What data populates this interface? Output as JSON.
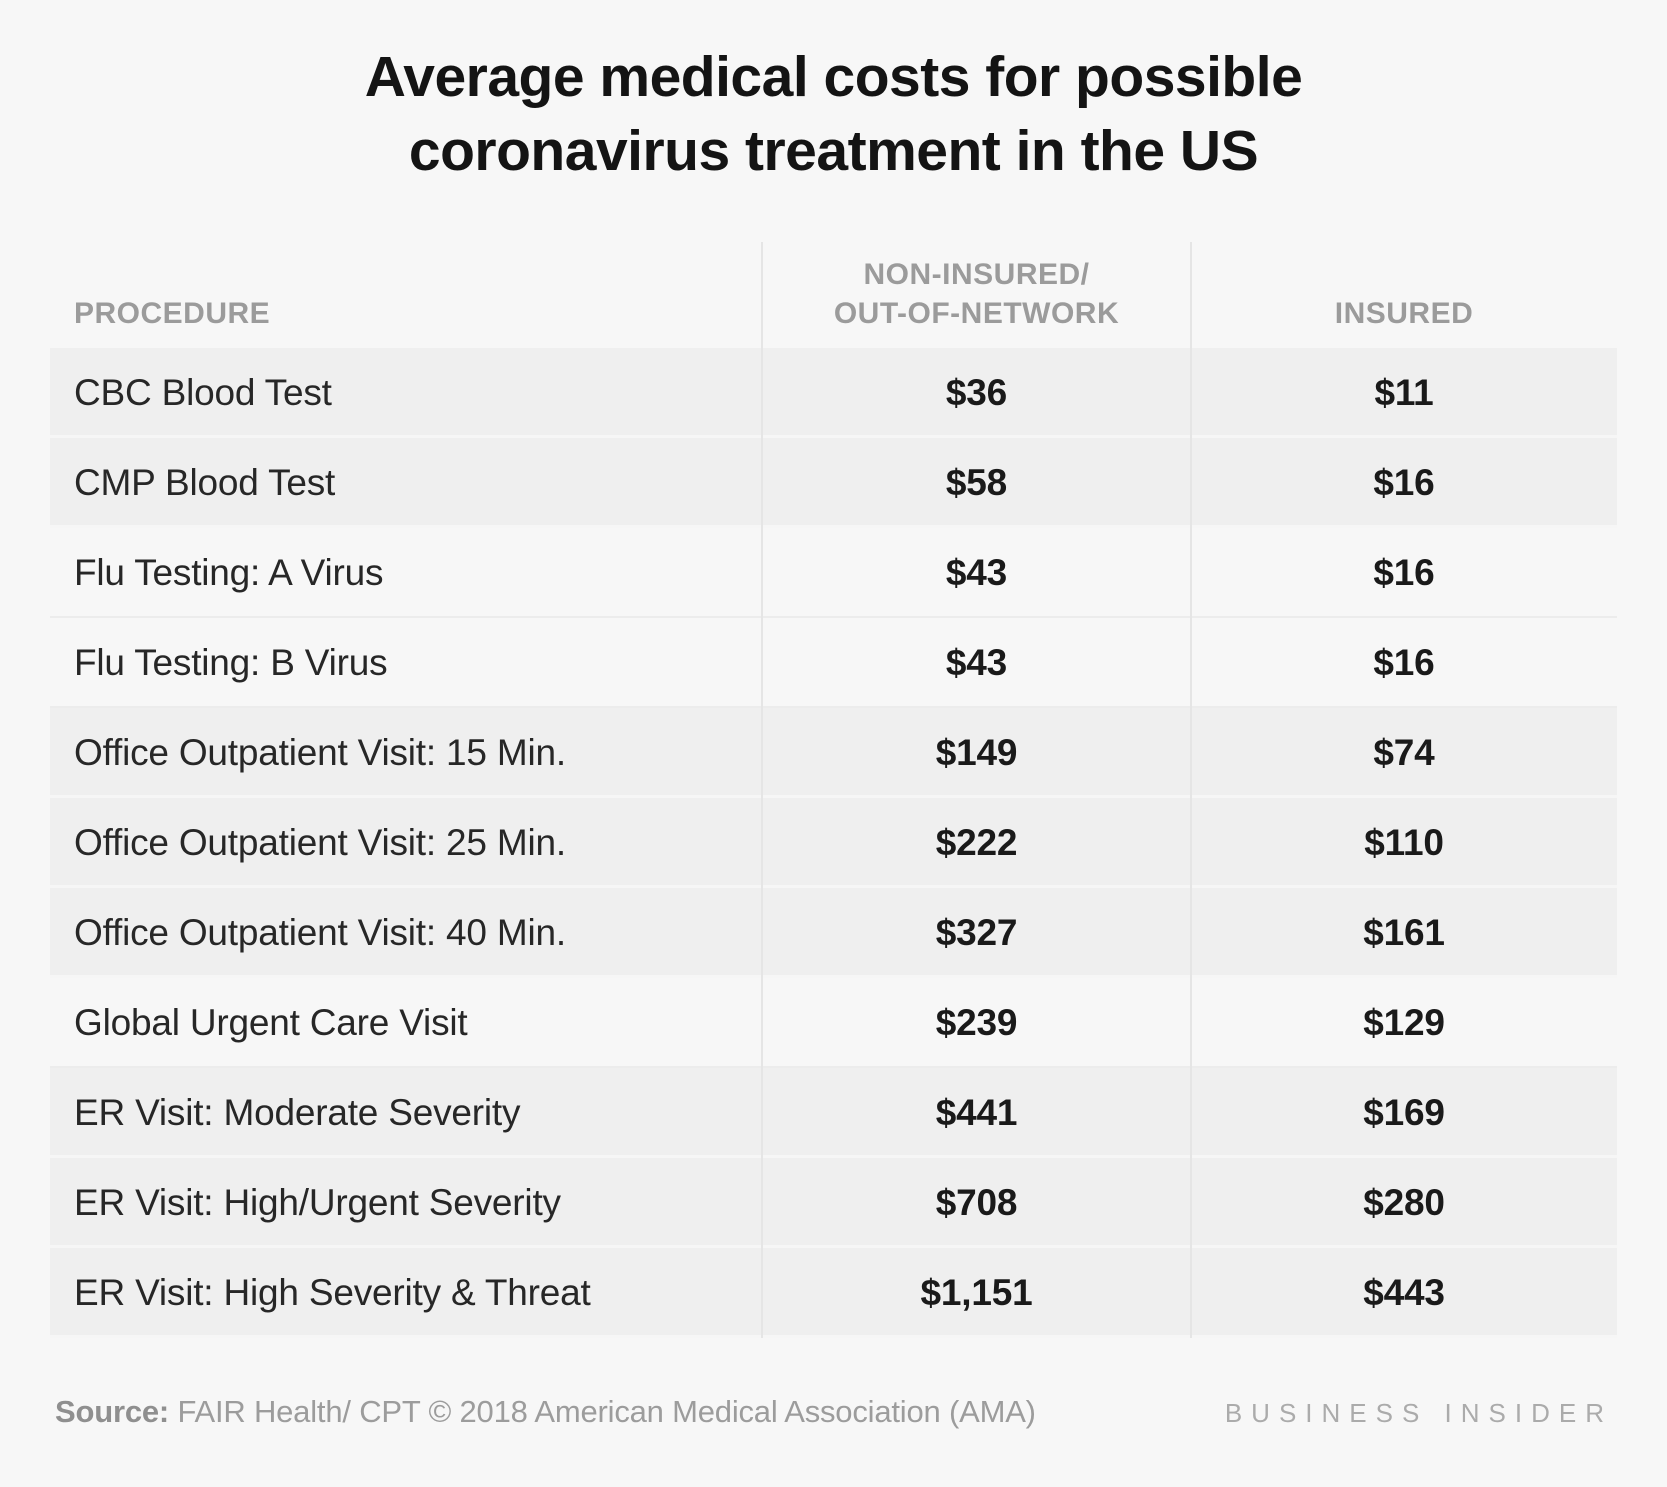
{
  "chart_data": {
    "type": "table",
    "title": "Average medical costs for possible coronavirus treatment in the US",
    "title_line1": "Average medical costs for possible",
    "title_line2": "coronavirus treatment in the US",
    "columns": [
      {
        "label": "PROCEDURE",
        "align": "left"
      },
      {
        "label": "NON-INSURED/OUT-OF-NETWORK",
        "label_line1": "NON-INSURED/",
        "label_line2": "OUT-OF-NETWORK",
        "align": "center"
      },
      {
        "label": "INSURED",
        "align": "center"
      }
    ],
    "rows": [
      {
        "procedure": "CBC Blood Test",
        "non_insured": "$36",
        "insured": "$11",
        "shaded": true
      },
      {
        "procedure": "CMP Blood Test",
        "non_insured": "$58",
        "insured": "$16",
        "shaded": true
      },
      {
        "procedure": "Flu Testing: A Virus",
        "non_insured": "$43",
        "insured": "$16",
        "shaded": false
      },
      {
        "procedure": "Flu Testing: B Virus",
        "non_insured": "$43",
        "insured": "$16",
        "shaded": false
      },
      {
        "procedure": "Office Outpatient Visit: 15 Min.",
        "non_insured": "$149",
        "insured": "$74",
        "shaded": true
      },
      {
        "procedure": "Office Outpatient Visit: 25 Min.",
        "non_insured": "$222",
        "insured": "$110",
        "shaded": true
      },
      {
        "procedure": "Office Outpatient Visit: 40 Min.",
        "non_insured": "$327",
        "insured": "$161",
        "shaded": true
      },
      {
        "procedure": "Global Urgent Care Visit",
        "non_insured": "$239",
        "insured": "$129",
        "shaded": false
      },
      {
        "procedure": "ER Visit: Moderate Severity",
        "non_insured": "$441",
        "insured": "$169",
        "shaded": true
      },
      {
        "procedure": "ER Visit: High/Urgent Severity",
        "non_insured": "$708",
        "insured": "$280",
        "shaded": true
      },
      {
        "procedure": "ER Visit: High Severity & Threat",
        "non_insured": "$1,151",
        "insured": "$443",
        "shaded": true
      }
    ],
    "layout": {
      "grid": "off",
      "legend": "none"
    }
  },
  "footer": {
    "source_label": "Source:",
    "source_text": " FAIR Health/ CPT © 2018 American Medical Association (AMA)",
    "brand": "BUSINESS INSIDER"
  },
  "colors": {
    "page_bg": "#f7f7f7",
    "row_shaded_bg": "#efefef",
    "column_divider": "#e5e5e5",
    "title_text": "#141414",
    "value_text": "#1a1a1a",
    "header_text": "#9b9b9b",
    "footer_text": "#9c9c9c",
    "brand_text": "#ababab"
  }
}
